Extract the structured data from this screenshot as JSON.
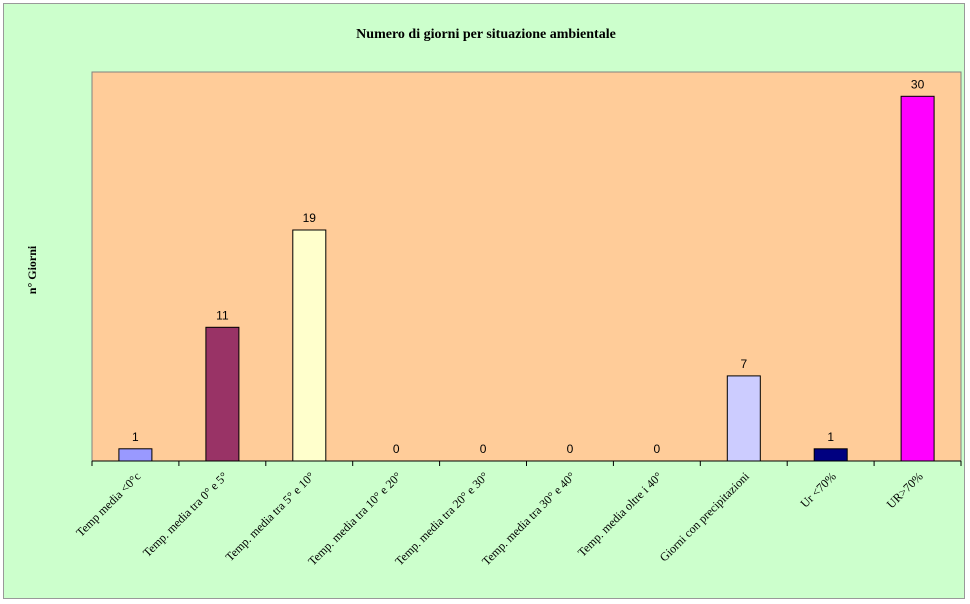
{
  "chart_data": {
    "type": "bar",
    "title": "Numero di giorni per situazione ambientale",
    "xlabel": "",
    "ylabel": "n° Giorni",
    "ylim": [
      0,
      32
    ],
    "grid": false,
    "legend": "none",
    "categories": [
      "Temp media <0°c",
      "Temp. media tra 0° e 5°",
      "Temp. media tra 5° e 10°",
      "Temp. media tra 10° e 20°",
      "Temp. media tra 20° e 30°",
      "Temp. media tra 30° e 40°",
      "Temp. media oltre i 40°",
      "Giorni con precipitazioni",
      "Ur <70%",
      "UR>70%"
    ],
    "values": [
      1,
      11,
      19,
      0,
      0,
      0,
      0,
      7,
      1,
      30
    ],
    "data_labels": [
      "1",
      "11",
      "19",
      "0",
      "0",
      "0",
      "0",
      "7",
      "1",
      "30"
    ],
    "bar_colors": [
      "#9999ff",
      "#993366",
      "#ffffcc",
      "#ccffff",
      "#660066",
      "#ff8080",
      "#0066cc",
      "#ccccff",
      "#000080",
      "#ff00ff"
    ],
    "plot_background": "#ffcc99",
    "chart_background": "#ccffcc"
  }
}
